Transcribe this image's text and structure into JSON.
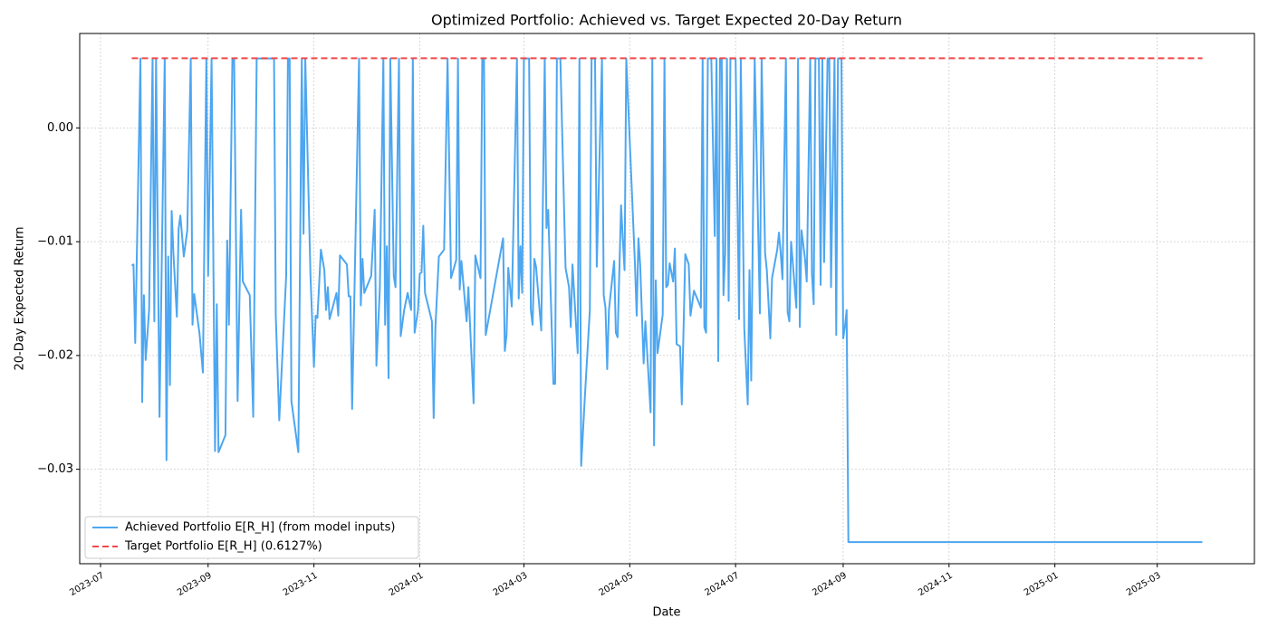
{
  "chart_data": {
    "type": "line",
    "title": "Optimized Portfolio: Achieved vs. Target Expected 20-Day Return",
    "xlabel": "Date",
    "ylabel": "20-Day Expected Return",
    "xlim": [
      "2023-06-19",
      "2025-04-26"
    ],
    "xticks": [
      {
        "value": "2023-07-01",
        "label": "2023-07"
      },
      {
        "value": "2023-09-01",
        "label": "2023-09"
      },
      {
        "value": "2023-11-01",
        "label": "2023-11"
      },
      {
        "value": "2024-01-01",
        "label": "2024-01"
      },
      {
        "value": "2024-03-01",
        "label": "2024-03"
      },
      {
        "value": "2024-05-01",
        "label": "2024-05"
      },
      {
        "value": "2024-07-01",
        "label": "2024-07"
      },
      {
        "value": "2024-09-01",
        "label": "2024-09"
      },
      {
        "value": "2024-11-01",
        "label": "2024-11"
      },
      {
        "value": "2025-01-01",
        "label": "2025-01"
      },
      {
        "value": "2025-03-01",
        "label": "2025-03"
      }
    ],
    "ylim": [
      -0.0383,
      0.0083
    ],
    "yticks": [
      {
        "value": -0.03,
        "label": "−0.03"
      },
      {
        "value": -0.02,
        "label": "−0.02"
      },
      {
        "value": -0.01,
        "label": "−0.01"
      },
      {
        "value": 0,
        "label": "0.00"
      }
    ],
    "grid": true,
    "legend": "lower left",
    "series": [
      {
        "name": "Achieved Portfolio E[R_H] (from model inputs)",
        "color": "#4da6f0",
        "dash": "solid",
        "x": [
          "2023-07-19",
          "2023-07-20",
          "2023-07-21",
          "2023-07-24",
          "2023-07-25",
          "2023-07-26",
          "2023-07-27",
          "2023-07-29",
          "2023-07-31",
          "2023-08-01",
          "2023-08-02",
          "2023-08-04",
          "2023-08-07",
          "2023-08-08",
          "2023-08-09",
          "2023-08-10",
          "2023-08-11",
          "2023-08-12",
          "2023-08-14",
          "2023-08-15",
          "2023-08-16",
          "2023-08-18",
          "2023-08-20",
          "2023-08-22",
          "2023-08-23",
          "2023-08-24",
          "2023-08-27",
          "2023-08-29",
          "2023-08-31",
          "2023-09-01",
          "2023-09-03",
          "2023-09-05",
          "2023-09-06",
          "2023-09-07",
          "2023-09-11",
          "2023-09-12",
          "2023-09-13",
          "2023-09-15",
          "2023-09-16",
          "2023-09-18",
          "2023-09-20",
          "2023-09-21",
          "2023-09-25",
          "2023-09-27",
          "2023-09-29",
          "2023-10-09",
          "2023-10-10",
          "2023-10-12",
          "2023-10-16",
          "2023-10-17",
          "2023-10-18",
          "2023-10-19",
          "2023-10-23",
          "2023-10-25",
          "2023-10-26",
          "2023-10-27",
          "2023-10-30",
          "2023-11-01",
          "2023-11-02",
          "2023-11-03",
          "2023-11-05",
          "2023-11-07",
          "2023-11-08",
          "2023-11-09",
          "2023-11-10",
          "2023-11-14",
          "2023-11-15",
          "2023-11-16",
          "2023-11-20",
          "2023-11-21",
          "2023-11-22",
          "2023-11-23",
          "2023-11-27",
          "2023-11-28",
          "2023-11-29",
          "2023-11-30",
          "2023-12-04",
          "2023-12-06",
          "2023-12-07",
          "2023-12-09",
          "2023-12-11",
          "2023-12-12",
          "2023-12-13",
          "2023-12-14",
          "2023-12-15",
          "2023-12-17",
          "2023-12-18",
          "2023-12-20",
          "2023-12-21",
          "2023-12-23",
          "2023-12-25",
          "2023-12-27",
          "2023-12-28",
          "2023-12-29",
          "2023-12-31",
          "2024-01-01",
          "2024-01-02",
          "2024-01-03",
          "2024-01-04",
          "2024-01-08",
          "2024-01-09",
          "2024-01-10",
          "2024-01-12",
          "2024-01-15",
          "2024-01-17",
          "2024-01-19",
          "2024-01-22",
          "2024-01-23",
          "2024-01-24",
          "2024-01-25",
          "2024-01-28",
          "2024-01-29",
          "2024-02-01",
          "2024-02-02",
          "2024-02-05",
          "2024-02-06",
          "2024-02-07",
          "2024-02-08",
          "2024-02-18",
          "2024-02-19",
          "2024-02-20",
          "2024-02-21",
          "2024-02-23",
          "2024-02-26",
          "2024-02-27",
          "2024-02-28",
          "2024-02-29",
          "2024-03-01",
          "2024-03-04",
          "2024-03-05",
          "2024-03-06",
          "2024-03-07",
          "2024-03-08",
          "2024-03-11",
          "2024-03-13",
          "2024-03-14",
          "2024-03-15",
          "2024-03-18",
          "2024-03-19",
          "2024-03-20",
          "2024-03-22",
          "2024-03-25",
          "2024-03-27",
          "2024-03-28",
          "2024-03-29",
          "2024-04-01",
          "2024-04-02",
          "2024-04-03",
          "2024-04-05",
          "2024-04-08",
          "2024-04-09",
          "2024-04-11",
          "2024-04-12",
          "2024-04-15",
          "2024-04-16",
          "2024-04-17",
          "2024-04-18",
          "2024-04-19",
          "2024-04-22",
          "2024-04-23",
          "2024-04-24",
          "2024-04-26",
          "2024-04-27",
          "2024-04-28",
          "2024-04-29",
          "2024-05-04",
          "2024-05-05",
          "2024-05-06",
          "2024-05-07",
          "2024-05-09",
          "2024-05-10",
          "2024-05-13",
          "2024-05-14",
          "2024-05-15",
          "2024-05-16",
          "2024-05-17",
          "2024-05-20",
          "2024-05-21",
          "2024-05-22",
          "2024-05-23",
          "2024-05-24",
          "2024-05-26",
          "2024-05-27",
          "2024-05-28",
          "2024-05-30",
          "2024-05-31",
          "2024-06-02",
          "2024-06-04",
          "2024-06-05",
          "2024-06-07",
          "2024-06-11",
          "2024-06-12",
          "2024-06-13",
          "2024-06-14",
          "2024-06-15",
          "2024-06-17",
          "2024-06-19",
          "2024-06-20",
          "2024-06-21",
          "2024-06-22",
          "2024-06-23",
          "2024-06-24",
          "2024-06-25",
          "2024-06-26",
          "2024-06-27",
          "2024-06-28",
          "2024-07-01",
          "2024-07-03",
          "2024-07-04",
          "2024-07-06",
          "2024-07-08",
          "2024-07-09",
          "2024-07-10",
          "2024-07-12",
          "2024-07-15",
          "2024-07-16",
          "2024-07-18",
          "2024-07-19",
          "2024-07-21",
          "2024-07-22",
          "2024-07-25",
          "2024-07-26",
          "2024-07-27",
          "2024-07-28",
          "2024-07-30",
          "2024-07-31",
          "2024-08-01",
          "2024-08-02",
          "2024-08-05",
          "2024-08-06",
          "2024-08-07",
          "2024-08-08",
          "2024-08-10",
          "2024-08-11",
          "2024-08-13",
          "2024-08-14",
          "2024-08-15",
          "2024-08-16",
          "2024-08-18",
          "2024-08-19",
          "2024-08-20",
          "2024-08-21",
          "2024-08-23",
          "2024-08-24",
          "2024-08-25",
          "2024-08-27",
          "2024-08-28",
          "2024-08-29",
          "2024-08-31",
          "2024-09-01",
          "2024-09-02",
          "2024-09-03",
          "2024-09-04",
          "2025-03-27"
        ],
        "values": [
          -0.0121,
          -0.012,
          -0.0189,
          0.0061,
          -0.0241,
          -0.0147,
          -0.0204,
          -0.016,
          0.0061,
          -0.017,
          0.0061,
          -0.0254,
          0.0061,
          -0.0292,
          -0.0113,
          -0.0226,
          -0.0073,
          -0.011,
          -0.0166,
          -0.0089,
          -0.0077,
          -0.0113,
          -0.009,
          0.0061,
          -0.0173,
          -0.0146,
          -0.018,
          -0.0215,
          0.0061,
          -0.013,
          0.0061,
          -0.0284,
          -0.0155,
          -0.0285,
          -0.027,
          -0.0099,
          -0.0173,
          0.0061,
          0.0061,
          -0.024,
          -0.0072,
          -0.0135,
          -0.0147,
          -0.0254,
          0.0061,
          0.0061,
          -0.0165,
          -0.0257,
          -0.013,
          0.0061,
          0.0061,
          -0.024,
          -0.0285,
          0.0061,
          -0.0093,
          0.0061,
          -0.013,
          -0.021,
          -0.0165,
          -0.0167,
          -0.0107,
          -0.0125,
          -0.016,
          -0.014,
          -0.0168,
          -0.0145,
          -0.0165,
          -0.0112,
          -0.012,
          -0.0148,
          -0.0148,
          -0.0247,
          0.0061,
          -0.0156,
          -0.0115,
          -0.0145,
          -0.013,
          -0.0072,
          -0.0209,
          -0.014,
          0.0061,
          -0.0173,
          -0.0104,
          -0.022,
          0.0061,
          -0.013,
          -0.014,
          0.0061,
          -0.0183,
          -0.016,
          -0.0145,
          -0.016,
          0.0061,
          -0.018,
          -0.016,
          -0.0128,
          -0.0127,
          -0.0086,
          -0.0145,
          -0.017,
          -0.0255,
          -0.0175,
          -0.0113,
          -0.0107,
          0.0061,
          -0.0132,
          -0.0116,
          0.0061,
          -0.0142,
          -0.0117,
          -0.017,
          -0.014,
          -0.0242,
          -0.0112,
          -0.0132,
          0.0061,
          0.0061,
          -0.0182,
          -0.0097,
          -0.0196,
          -0.0182,
          -0.0123,
          -0.0157,
          0.0061,
          -0.015,
          -0.0104,
          -0.0145,
          0.0061,
          0.0061,
          -0.016,
          -0.0173,
          -0.0115,
          -0.0122,
          -0.0178,
          0.0061,
          -0.0088,
          -0.0072,
          -0.0225,
          -0.0225,
          0.0061,
          0.0061,
          -0.0123,
          -0.014,
          -0.0175,
          -0.012,
          -0.0198,
          0.0061,
          -0.0297,
          -0.024,
          -0.016,
          0.0061,
          0.0061,
          -0.0122,
          0.0061,
          -0.0147,
          -0.0158,
          -0.0212,
          -0.016,
          -0.0117,
          -0.018,
          -0.0184,
          -0.0068,
          -0.0098,
          -0.0125,
          0.0061,
          -0.012,
          -0.0165,
          -0.0097,
          -0.012,
          -0.0207,
          -0.017,
          -0.025,
          0.0061,
          -0.0279,
          -0.0134,
          -0.0198,
          -0.0164,
          0.0061,
          -0.014,
          -0.0138,
          -0.0119,
          -0.0135,
          -0.0106,
          -0.019,
          -0.0192,
          -0.0243,
          -0.0111,
          -0.012,
          -0.0165,
          -0.0143,
          -0.0158,
          0.0061,
          -0.0175,
          -0.018,
          0.0061,
          0.0061,
          -0.0095,
          0.0061,
          -0.0205,
          0.0061,
          0.0061,
          -0.0147,
          -0.011,
          0.0061,
          -0.0152,
          0.0061,
          0.0061,
          -0.0168,
          0.0061,
          -0.0176,
          -0.0243,
          -0.0125,
          -0.0222,
          0.0061,
          -0.0163,
          0.0061,
          -0.011,
          -0.0125,
          -0.0185,
          -0.0132,
          -0.0107,
          -0.0092,
          -0.011,
          -0.0133,
          0.0061,
          -0.0162,
          -0.017,
          -0.01,
          -0.0158,
          0.0061,
          -0.0175,
          -0.009,
          -0.0115,
          -0.0135,
          0.0061,
          -0.0128,
          -0.0155,
          0.0061,
          0.0061,
          -0.0138,
          0.0061,
          -0.0118,
          0.0061,
          0.0061,
          -0.014,
          0.0061,
          -0.0182,
          0.0061,
          0.0061,
          -0.0185,
          -0.0175,
          -0.016,
          -0.0364,
          -0.0364
        ]
      },
      {
        "name": "Target Portfolio E[R_H] (0.6127%)",
        "color": "#f04848",
        "dash": "dashed",
        "x": [
          "2023-07-19",
          "2025-03-27"
        ],
        "values": [
          0.006127,
          0.006127
        ]
      }
    ]
  }
}
